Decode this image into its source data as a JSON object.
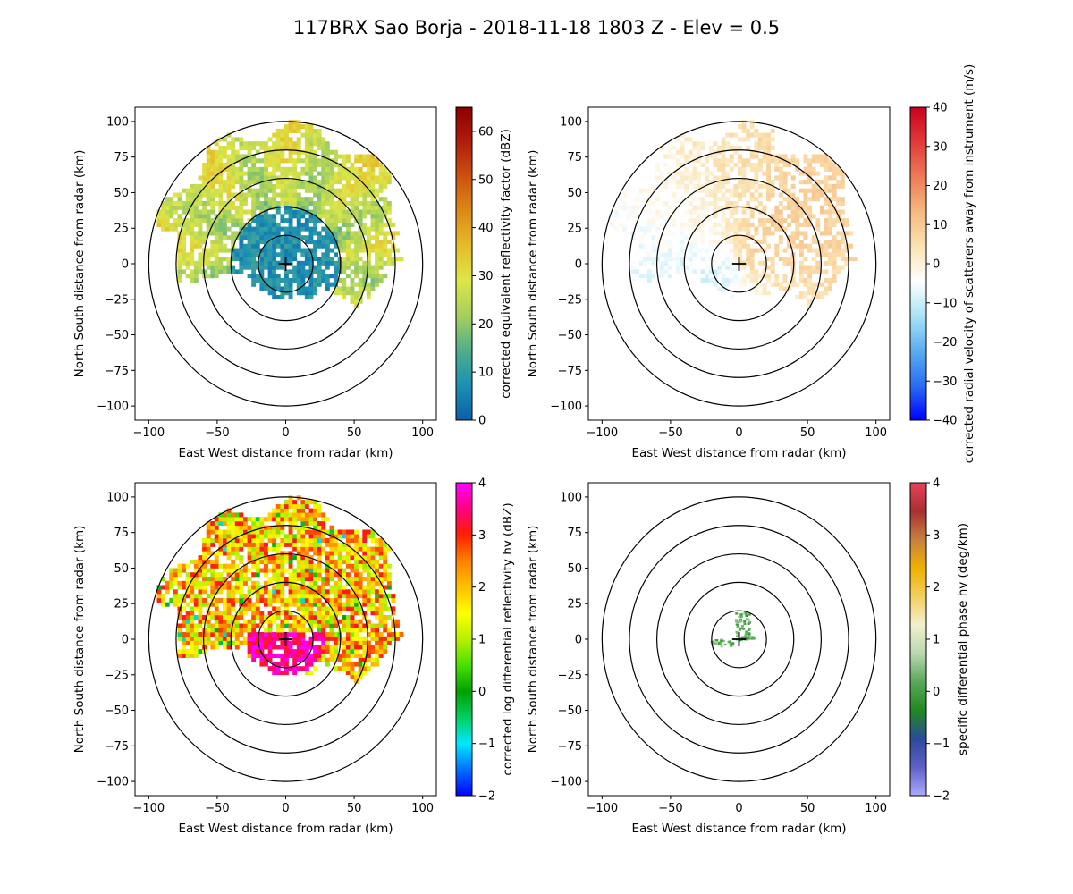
{
  "figure": {
    "title": "117BRX Sao Borja - 2018-11-18 1803 Z -  Elev = 0.5"
  },
  "chart_data": [
    {
      "type": "heatmap",
      "subtype": "radar-ppi",
      "field": "reflectivity",
      "xlabel": "East West distance from radar (km)",
      "ylabel": "North South distance from radar (km)",
      "xlim": [
        -110,
        110
      ],
      "ylim": [
        -110,
        110
      ],
      "xticks": [
        -100,
        -50,
        0,
        50,
        100
      ],
      "yticks": [
        -100,
        -75,
        -50,
        -25,
        0,
        25,
        50,
        75,
        100
      ],
      "range_rings_km": [
        20,
        40,
        60,
        80,
        100
      ],
      "colorbar": {
        "label": "corrected equivalent reflectivity factor (dBZ)",
        "vmin": 0,
        "vmax": 65,
        "ticks": [
          0,
          10,
          20,
          30,
          40,
          50,
          60
        ],
        "colors": [
          "#0b5fa8",
          "#1b8fb4",
          "#4fae8a",
          "#a4cf5e",
          "#dde647",
          "#e6bd2b",
          "#dc8a17",
          "#cc5210",
          "#b01d0c",
          "#8a0000"
        ]
      }
    },
    {
      "type": "heatmap",
      "subtype": "radar-ppi",
      "field": "velocity",
      "xlabel": "East West distance from radar (km)",
      "ylabel": "North South distance from radar (km)",
      "xlim": [
        -110,
        110
      ],
      "ylim": [
        -110,
        110
      ],
      "xticks": [
        -100,
        -50,
        0,
        50,
        100
      ],
      "yticks": [
        -100,
        -75,
        -50,
        -25,
        0,
        25,
        50,
        75,
        100
      ],
      "range_rings_km": [
        20,
        40,
        60,
        80,
        100
      ],
      "colorbar": {
        "label": "corrected radial velocity of scatterers away from instrument (m/s)",
        "vmin": -40,
        "vmax": 40,
        "ticks": [
          -40,
          -30,
          -20,
          -10,
          0,
          10,
          20,
          30,
          40
        ],
        "colors": [
          "#0000ff",
          "#2a6ef2",
          "#5aaef0",
          "#a9e3f5",
          "#ffffff",
          "#fbe3b2",
          "#f6b880",
          "#ef7a57",
          "#e23a3a",
          "#c8001e"
        ]
      }
    },
    {
      "type": "heatmap",
      "subtype": "radar-ppi",
      "field": "differential_reflectivity",
      "xlabel": "East West distance from radar (km)",
      "ylabel": "North South distance from radar (km)",
      "xlim": [
        -110,
        110
      ],
      "ylim": [
        -110,
        110
      ],
      "xticks": [
        -100,
        -50,
        0,
        50,
        100
      ],
      "yticks": [
        -100,
        -75,
        -50,
        -25,
        0,
        25,
        50,
        75,
        100
      ],
      "range_rings_km": [
        20,
        40,
        60,
        80,
        100
      ],
      "colorbar": {
        "label": "corrected log differential reflectivity hv (dBZ)",
        "vmin": -2,
        "vmax": 4,
        "ticks": [
          -2,
          -1,
          0,
          1,
          2,
          3,
          4
        ],
        "colors": [
          "#0000ff",
          "#0070ff",
          "#00e8ff",
          "#00d060",
          "#00a000",
          "#48e000",
          "#b8f000",
          "#ffff00",
          "#ffc000",
          "#ff8000",
          "#ff2000",
          "#ff0080",
          "#ff00ff"
        ]
      }
    },
    {
      "type": "heatmap",
      "subtype": "radar-ppi",
      "field": "specific_differential_phase",
      "xlabel": "East West distance from radar (km)",
      "ylabel": "North South distance from radar (km)",
      "xlim": [
        -110,
        110
      ],
      "ylim": [
        -110,
        110
      ],
      "xticks": [
        -100,
        -50,
        0,
        50,
        100
      ],
      "yticks": [
        -100,
        -75,
        -50,
        -25,
        0,
        25,
        50,
        75,
        100
      ],
      "range_rings_km": [
        20,
        40,
        60,
        80,
        100
      ],
      "colorbar": {
        "label": "specific differential phase hv (deg/km)",
        "vmin": -2,
        "vmax": 4,
        "ticks": [
          -2,
          -1,
          0,
          1,
          2,
          3,
          4
        ],
        "colors": [
          "#aaaaff",
          "#6060c8",
          "#2a4a9a",
          "#208a20",
          "#5aa85a",
          "#b8d8b0",
          "#f2f0cc",
          "#f2d060",
          "#f0b000",
          "#c88040",
          "#a83030",
          "#e8405a"
        ]
      }
    }
  ]
}
